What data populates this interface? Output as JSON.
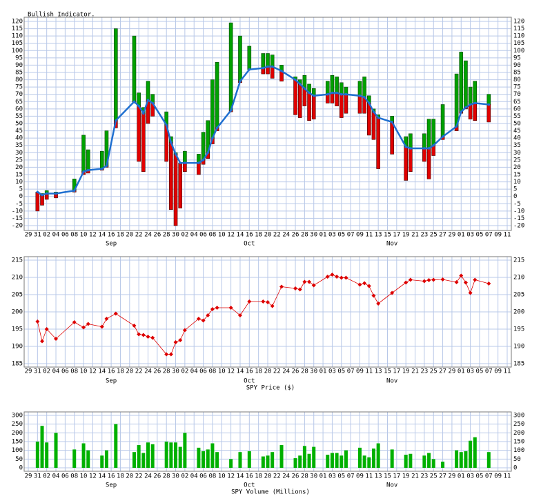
{
  "chart_data": [
    {
      "type": "range",
      "title": "Bullish Indicator.",
      "xlim": [
        0,
        104
      ],
      "xticks": [
        {
          "value": 0,
          "label": "29"
        },
        {
          "value": 2,
          "label": "31"
        },
        {
          "value": 4,
          "label": "02"
        },
        {
          "value": 6,
          "label": "04"
        },
        {
          "value": 8,
          "label": "06"
        },
        {
          "value": 10,
          "label": "08"
        },
        {
          "value": 12,
          "label": "10"
        },
        {
          "value": 14,
          "label": "12"
        },
        {
          "value": 16,
          "label": "14"
        },
        {
          "value": 18,
          "label": "16"
        },
        {
          "value": 20,
          "label": "18"
        },
        {
          "value": 22,
          "label": "20"
        },
        {
          "value": 24,
          "label": "22"
        },
        {
          "value": 26,
          "label": "24"
        },
        {
          "value": 28,
          "label": "26"
        },
        {
          "value": 30,
          "label": "28"
        },
        {
          "value": 32,
          "label": "30"
        },
        {
          "value": 34,
          "label": "02"
        },
        {
          "value": 36,
          "label": "04"
        },
        {
          "value": 38,
          "label": "06"
        },
        {
          "value": 40,
          "label": "08"
        },
        {
          "value": 42,
          "label": "10"
        },
        {
          "value": 44,
          "label": "12"
        },
        {
          "value": 46,
          "label": "14"
        },
        {
          "value": 48,
          "label": "16"
        },
        {
          "value": 50,
          "label": "18"
        },
        {
          "value": 52,
          "label": "20"
        },
        {
          "value": 54,
          "label": "22"
        },
        {
          "value": 56,
          "label": "24"
        },
        {
          "value": 58,
          "label": "26"
        },
        {
          "value": 60,
          "label": "28"
        },
        {
          "value": 62,
          "label": "30"
        },
        {
          "value": 64,
          "label": "01"
        },
        {
          "value": 66,
          "label": "03"
        },
        {
          "value": 68,
          "label": "05"
        },
        {
          "value": 70,
          "label": "07"
        },
        {
          "value": 72,
          "label": "09"
        },
        {
          "value": 74,
          "label": "11"
        },
        {
          "value": 76,
          "label": "13"
        },
        {
          "value": 78,
          "label": "15"
        },
        {
          "value": 80,
          "label": "17"
        },
        {
          "value": 82,
          "label": "19"
        },
        {
          "value": 84,
          "label": "21"
        },
        {
          "value": 86,
          "label": "23"
        },
        {
          "value": 88,
          "label": "25"
        },
        {
          "value": 90,
          "label": "27"
        },
        {
          "value": 92,
          "label": "29"
        },
        {
          "value": 94,
          "label": "01"
        },
        {
          "value": 96,
          "label": "03"
        },
        {
          "value": 98,
          "label": "05"
        },
        {
          "value": 100,
          "label": "07"
        },
        {
          "value": 102,
          "label": "09"
        },
        {
          "value": 104,
          "label": "11"
        }
      ],
      "month_labels": [
        {
          "value": 18,
          "label": "Sep"
        },
        {
          "value": 48,
          "label": "Oct"
        },
        {
          "value": 79,
          "label": "Nov"
        }
      ],
      "x": [
        2,
        3,
        4,
        6,
        10,
        12,
        13,
        16,
        17,
        19,
        23,
        24,
        25,
        26,
        27,
        30,
        31,
        32,
        33,
        34,
        37,
        38,
        39,
        40,
        41,
        44,
        46,
        48,
        51,
        52,
        53,
        55,
        58,
        59,
        60,
        61,
        62,
        65,
        66,
        67,
        68,
        69,
        72,
        73,
        74,
        75,
        76,
        79,
        82,
        83,
        86,
        87,
        88,
        90,
        93,
        94,
        95,
        96,
        97,
        100
      ],
      "high": [
        3,
        2,
        4,
        3,
        12,
        42,
        32,
        31,
        45,
        115,
        110,
        71,
        61,
        79,
        70,
        58,
        41,
        30,
        23,
        31,
        29,
        44,
        52,
        80,
        92,
        119,
        110,
        103,
        98,
        98,
        97,
        90,
        82,
        80,
        83,
        77,
        74,
        79,
        83,
        82,
        78,
        75,
        79,
        82,
        69,
        60,
        56,
        55,
        41,
        43,
        43,
        53,
        53,
        63,
        84,
        99,
        93,
        75,
        79,
        70
      ],
      "low": [
        -10,
        -6,
        -2,
        -1,
        3,
        15,
        16,
        18,
        20,
        47,
        64,
        24,
        17,
        50,
        55,
        24,
        -9,
        -20,
        -8,
        17,
        15,
        22,
        26,
        36,
        45,
        58,
        78,
        87,
        84,
        84,
        81,
        79,
        56,
        54,
        62,
        52,
        53,
        64,
        64,
        62,
        54,
        57,
        57,
        57,
        42,
        39,
        19,
        29,
        11,
        17,
        24,
        12,
        28,
        39,
        45,
        57,
        60,
        53,
        52,
        51
      ],
      "line": [
        3,
        1,
        2,
        2,
        4,
        17,
        18,
        19,
        21,
        52,
        65,
        62,
        57,
        66,
        64,
        49,
        37,
        29,
        23,
        23,
        23,
        25,
        30,
        40,
        47,
        59,
        79,
        87,
        88,
        89,
        89,
        86,
        80,
        77,
        74,
        71,
        69,
        70,
        71,
        71,
        70,
        70,
        69,
        68,
        64,
        58,
        54,
        51,
        34,
        33,
        33,
        33,
        35,
        41,
        48,
        58,
        61,
        63,
        64,
        63
      ],
      "up_color": "#00a000",
      "down_color": "#e00000",
      "line_color": "#1e6fd0",
      "ylim": [
        -20,
        120
      ],
      "yticks": [
        -20,
        -15,
        -10,
        -5,
        0,
        5,
        10,
        15,
        20,
        25,
        30,
        35,
        40,
        45,
        50,
        55,
        60,
        65,
        70,
        75,
        80,
        85,
        90,
        95,
        100,
        105,
        110,
        115,
        120
      ],
      "grid": true
    },
    {
      "type": "line",
      "xlabel": "SPY Price ($)",
      "color": "#dd0000",
      "values": [
        197.2,
        191.5,
        195,
        192.2,
        197,
        195.5,
        196.5,
        195.7,
        198,
        199.5,
        196,
        193.5,
        193.3,
        192.8,
        192.5,
        187.7,
        187.7,
        191.2,
        191.8,
        194.7,
        198,
        197.5,
        199,
        200.8,
        201.2,
        201.2,
        199,
        203,
        203,
        202.8,
        201.7,
        207.3,
        206.8,
        206.5,
        208.7,
        208.7,
        207.7,
        210.2,
        210.8,
        210.2,
        209.9,
        209.9,
        207.9,
        208.3,
        207.5,
        204.7,
        202.4,
        205.5,
        208.5,
        209.3,
        208.9,
        209.2,
        209.3,
        209.4,
        208.6,
        210.5,
        208.5,
        205.5,
        209.3,
        208.2
      ],
      "ylim": [
        185,
        215
      ],
      "yticks": [
        185,
        190,
        195,
        200,
        205,
        210,
        215
      ],
      "grid": true
    },
    {
      "type": "bar",
      "xlabel": "SPY Volume (Millions)",
      "color": "#00b000",
      "values": [
        150,
        240,
        145,
        200,
        105,
        140,
        100,
        70,
        100,
        250,
        90,
        130,
        85,
        145,
        135,
        150,
        145,
        145,
        120,
        200,
        115,
        95,
        105,
        140,
        90,
        50,
        90,
        95,
        65,
        70,
        90,
        130,
        55,
        70,
        125,
        80,
        120,
        75,
        85,
        85,
        70,
        100,
        115,
        70,
        60,
        110,
        140,
        105,
        75,
        80,
        70,
        85,
        50,
        35,
        100,
        90,
        95,
        155,
        175,
        90
      ],
      "ylim": [
        0,
        300
      ],
      "yticks": [
        0,
        50,
        100,
        150,
        200,
        250,
        300
      ],
      "grid": true
    }
  ]
}
